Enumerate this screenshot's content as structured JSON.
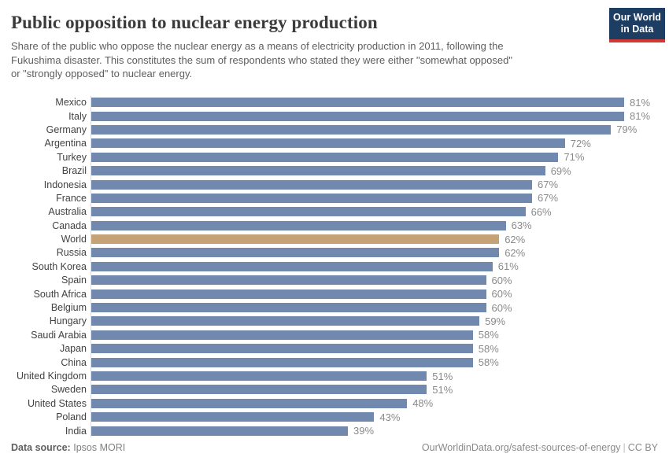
{
  "header": {
    "title": "Public opposition to nuclear energy production",
    "subtitle_lines": [
      "Share of the public who oppose the nuclear energy as a means of electricity production in 2011, following the",
      "Fukushima disaster. This constitutes the sum of respondents who stated they were either \"somewhat opposed\"",
      "or \"strongly opposed\" to nuclear energy."
    ],
    "logo": {
      "line1": "Our World",
      "line2": "in Data"
    }
  },
  "footer": {
    "source_label": "Data source:",
    "source_value": "Ipsos MORI",
    "site_url": "OurWorldinData.org/safest-sources-of-energy",
    "separator": "|",
    "license": "CC BY"
  },
  "colors": {
    "bar": "#7189ae",
    "highlight_bar": "#c5a377",
    "logo_bg": "#1d3d63",
    "logo_stripe": "#cf3a33",
    "axis_line": "#dcdcdc"
  },
  "chart_data": {
    "type": "bar",
    "orientation": "horizontal",
    "title": "Public opposition to nuclear energy production",
    "unit": "%",
    "xlim": [
      0,
      81
    ],
    "value_suffix": "%",
    "highlight_category": "World",
    "categories": [
      "Mexico",
      "Italy",
      "Germany",
      "Argentina",
      "Turkey",
      "Brazil",
      "Indonesia",
      "France",
      "Australia",
      "Canada",
      "World",
      "Russia",
      "South Korea",
      "Spain",
      "South Africa",
      "Belgium",
      "Hungary",
      "Saudi Arabia",
      "Japan",
      "China",
      "United Kingdom",
      "Sweden",
      "United States",
      "Poland",
      "India"
    ],
    "values": [
      81,
      81,
      79,
      72,
      71,
      69,
      67,
      67,
      66,
      63,
      62,
      62,
      61,
      60,
      60,
      60,
      59,
      58,
      58,
      58,
      51,
      51,
      48,
      43,
      39
    ]
  }
}
